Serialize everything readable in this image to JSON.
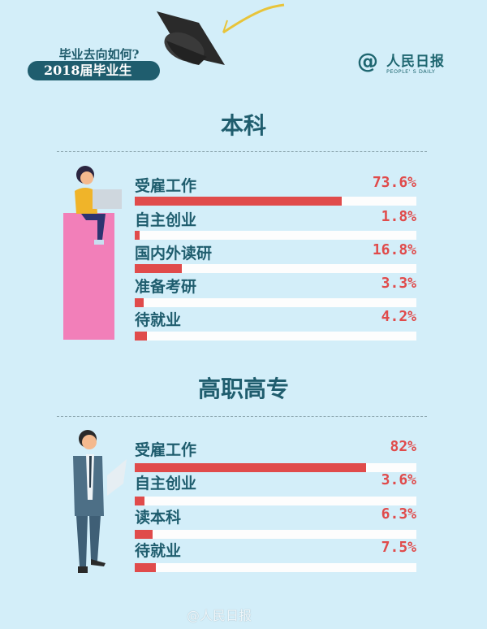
{
  "header": {
    "subtitle": "毕业去向如何?",
    "badge": "2018届毕业生",
    "logo": {
      "cn": "人民日报",
      "en": "PEOPLE' S DAILY"
    }
  },
  "watermark": "@人民日报",
  "colors": {
    "background": "#d3eef9",
    "text": "#1f5d6e",
    "bar": "#e04b4b",
    "track": "#fdfdfd",
    "pink_block": "#f27fb9"
  },
  "chart_data": [
    {
      "type": "bar",
      "orientation": "horizontal",
      "title": "本科",
      "categories": [
        "受雇工作",
        "自主创业",
        "国内外读研",
        "准备考研",
        "待就业"
      ],
      "values": [
        73.6,
        1.8,
        16.8,
        3.3,
        4.2
      ],
      "labels": [
        "73.6%",
        "1.8%",
        "16.8%",
        "3.3%",
        "4.2%"
      ],
      "xlim": [
        0,
        100
      ]
    },
    {
      "type": "bar",
      "orientation": "horizontal",
      "title": "高职高专",
      "categories": [
        "受雇工作",
        "自主创业",
        "读本科",
        "待就业"
      ],
      "values": [
        82,
        3.6,
        6.3,
        7.5
      ],
      "labels": [
        "82%",
        "3.6%",
        "6.3%",
        "7.5%"
      ],
      "xlim": [
        0,
        100
      ]
    }
  ]
}
